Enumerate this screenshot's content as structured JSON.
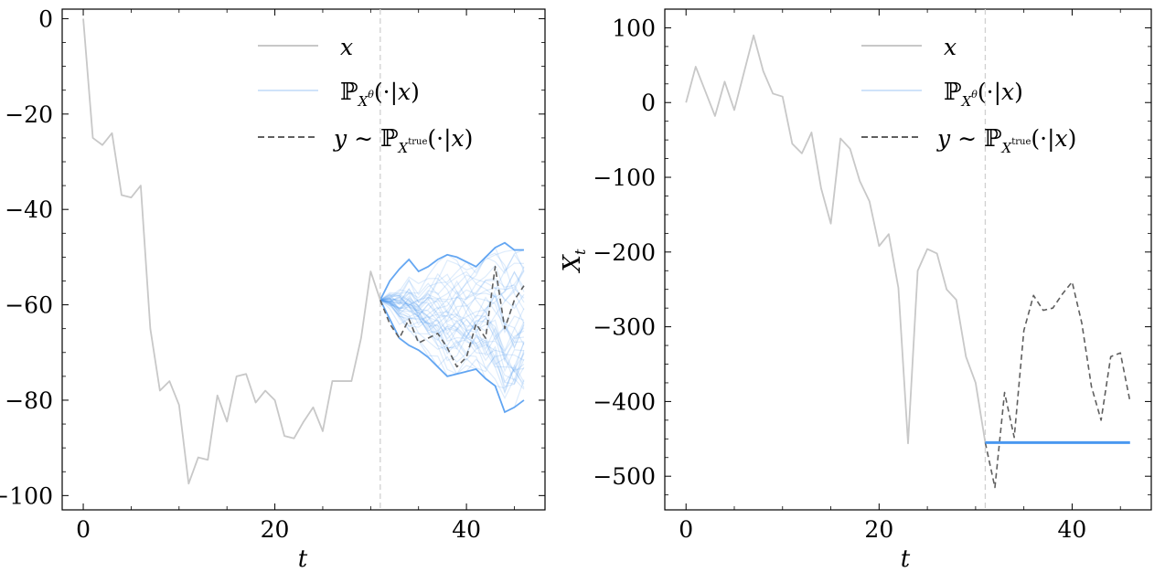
{
  "chart_data": [
    {
      "type": "line",
      "xlabel": "t",
      "ylabel": "",
      "xlim": [
        -2.2,
        48.2
      ],
      "ylim": [
        -103,
        2
      ],
      "xticks": [
        0,
        20,
        40
      ],
      "yticks": [
        0,
        -20,
        -40,
        -60,
        -80,
        -100
      ],
      "xtick_labels": [
        "0",
        "20",
        "40"
      ],
      "ytick_labels": [
        "0",
        "−20",
        "−40",
        "−60",
        "−80",
        "−100"
      ],
      "vline_x": 31,
      "legend_position": "top-right",
      "legend": {
        "x_label": "x",
        "model_label": "ℙ_{X^θ}(·|x)",
        "true_label": "y ∼ ℙ_{X^true}(·|x)"
      },
      "series": [
        {
          "name": "x",
          "color": "#c8c8c8",
          "x": [
            0,
            1,
            2,
            3,
            4,
            5,
            6,
            7,
            8,
            9,
            10,
            11,
            12,
            13,
            14,
            15,
            16,
            17,
            18,
            19,
            20,
            21,
            22,
            23,
            24,
            25,
            26,
            27,
            28,
            29,
            30,
            31
          ],
          "y": [
            0,
            -25,
            -26.5,
            -24,
            -37,
            -37.5,
            -35,
            -65,
            -78,
            -76,
            -81,
            -97.5,
            -92,
            -92.5,
            -79,
            -84.5,
            -75,
            -74.5,
            -80.5,
            -78,
            -80,
            -87.5,
            -88,
            -84.5,
            -81.5,
            -86.5,
            -76,
            -76,
            -76,
            -67,
            -53,
            -59
          ]
        },
        {
          "name": "y ∼ ℙ_{X^true}(·|x)",
          "color": "#5f5f5f",
          "dashed": true,
          "x": [
            31,
            32,
            33,
            34,
            35,
            36,
            37,
            38,
            39,
            40,
            41,
            42,
            43,
            44,
            45,
            46
          ],
          "y": [
            -59,
            -64,
            -67,
            -63,
            -68,
            -67,
            -66,
            -69,
            -73,
            -71,
            -64,
            -67,
            -52,
            -65,
            -59,
            -56
          ]
        }
      ],
      "samples": {
        "name": "ℙ_{X^θ}(·|x)",
        "color": "#4a98f0",
        "start": [
          31,
          -59
        ],
        "x": [
          31,
          32,
          33,
          34,
          35,
          36,
          37,
          38,
          39,
          40,
          41,
          42,
          43,
          44,
          45,
          46
        ],
        "upper": [
          -59,
          -55,
          -52.5,
          -50.5,
          -53,
          -52,
          -50.5,
          -49.5,
          -50,
          -51,
          -52,
          -50,
          -48,
          -47,
          -48.5,
          -48.5
        ],
        "lower": [
          -59,
          -63,
          -67,
          -68.5,
          -69.5,
          -71,
          -73,
          -75,
          -74.5,
          -74,
          -73.5,
          -75.5,
          -77,
          -82.5,
          -81.5,
          -80
        ],
        "count": 40
      }
    },
    {
      "type": "line",
      "xlabel": "t",
      "ylabel": "X_t",
      "xlim": [
        -2.2,
        48.2
      ],
      "ylim": [
        -545,
        125
      ],
      "xticks": [
        0,
        20,
        40
      ],
      "yticks": [
        100,
        0,
        -100,
        -200,
        -300,
        -400,
        -500
      ],
      "xtick_labels": [
        "0",
        "20",
        "40"
      ],
      "ytick_labels": [
        "100",
        "0",
        "−100",
        "−200",
        "−300",
        "−400",
        "−500"
      ],
      "vline_x": 31,
      "legend_position": "top-right",
      "legend": {
        "x_label": "x",
        "model_label": "ℙ_{X^θ}(·|x)",
        "true_label": "y ∼ ℙ_{X^true}(·|x)"
      },
      "series": [
        {
          "name": "x",
          "color": "#c8c8c8",
          "x": [
            0,
            1,
            2,
            3,
            4,
            5,
            6,
            7,
            8,
            9,
            10,
            11,
            12,
            13,
            14,
            15,
            16,
            17,
            18,
            19,
            20,
            21,
            22,
            23,
            24,
            25,
            26,
            27,
            28,
            29,
            30,
            31
          ],
          "y": [
            0,
            48,
            15,
            -18,
            28,
            -10,
            40,
            90,
            42,
            12,
            8,
            -55,
            -68,
            -40,
            -115,
            -162,
            -48,
            -62,
            -105,
            -132,
            -192,
            -176,
            -248,
            -456,
            -225,
            -196,
            -202,
            -250,
            -264,
            -340,
            -375,
            -455
          ]
        },
        {
          "name": "y ∼ ℙ_{X^true}(·|x)",
          "color": "#5f5f5f",
          "dashed": true,
          "x": [
            31,
            32,
            33,
            34,
            35,
            36,
            37,
            38,
            39,
            40,
            41,
            42,
            43,
            44,
            45,
            46
          ],
          "y": [
            -455,
            -515,
            -388,
            -448,
            -305,
            -258,
            -278,
            -275,
            -256,
            -240,
            -295,
            -380,
            -425,
            -340,
            -335,
            -400
          ]
        },
        {
          "name": "ℙ_{X^θ}(·|x)",
          "color": "#4a98f0",
          "x": [
            31,
            46
          ],
          "y": [
            -455,
            -455
          ]
        }
      ]
    }
  ]
}
